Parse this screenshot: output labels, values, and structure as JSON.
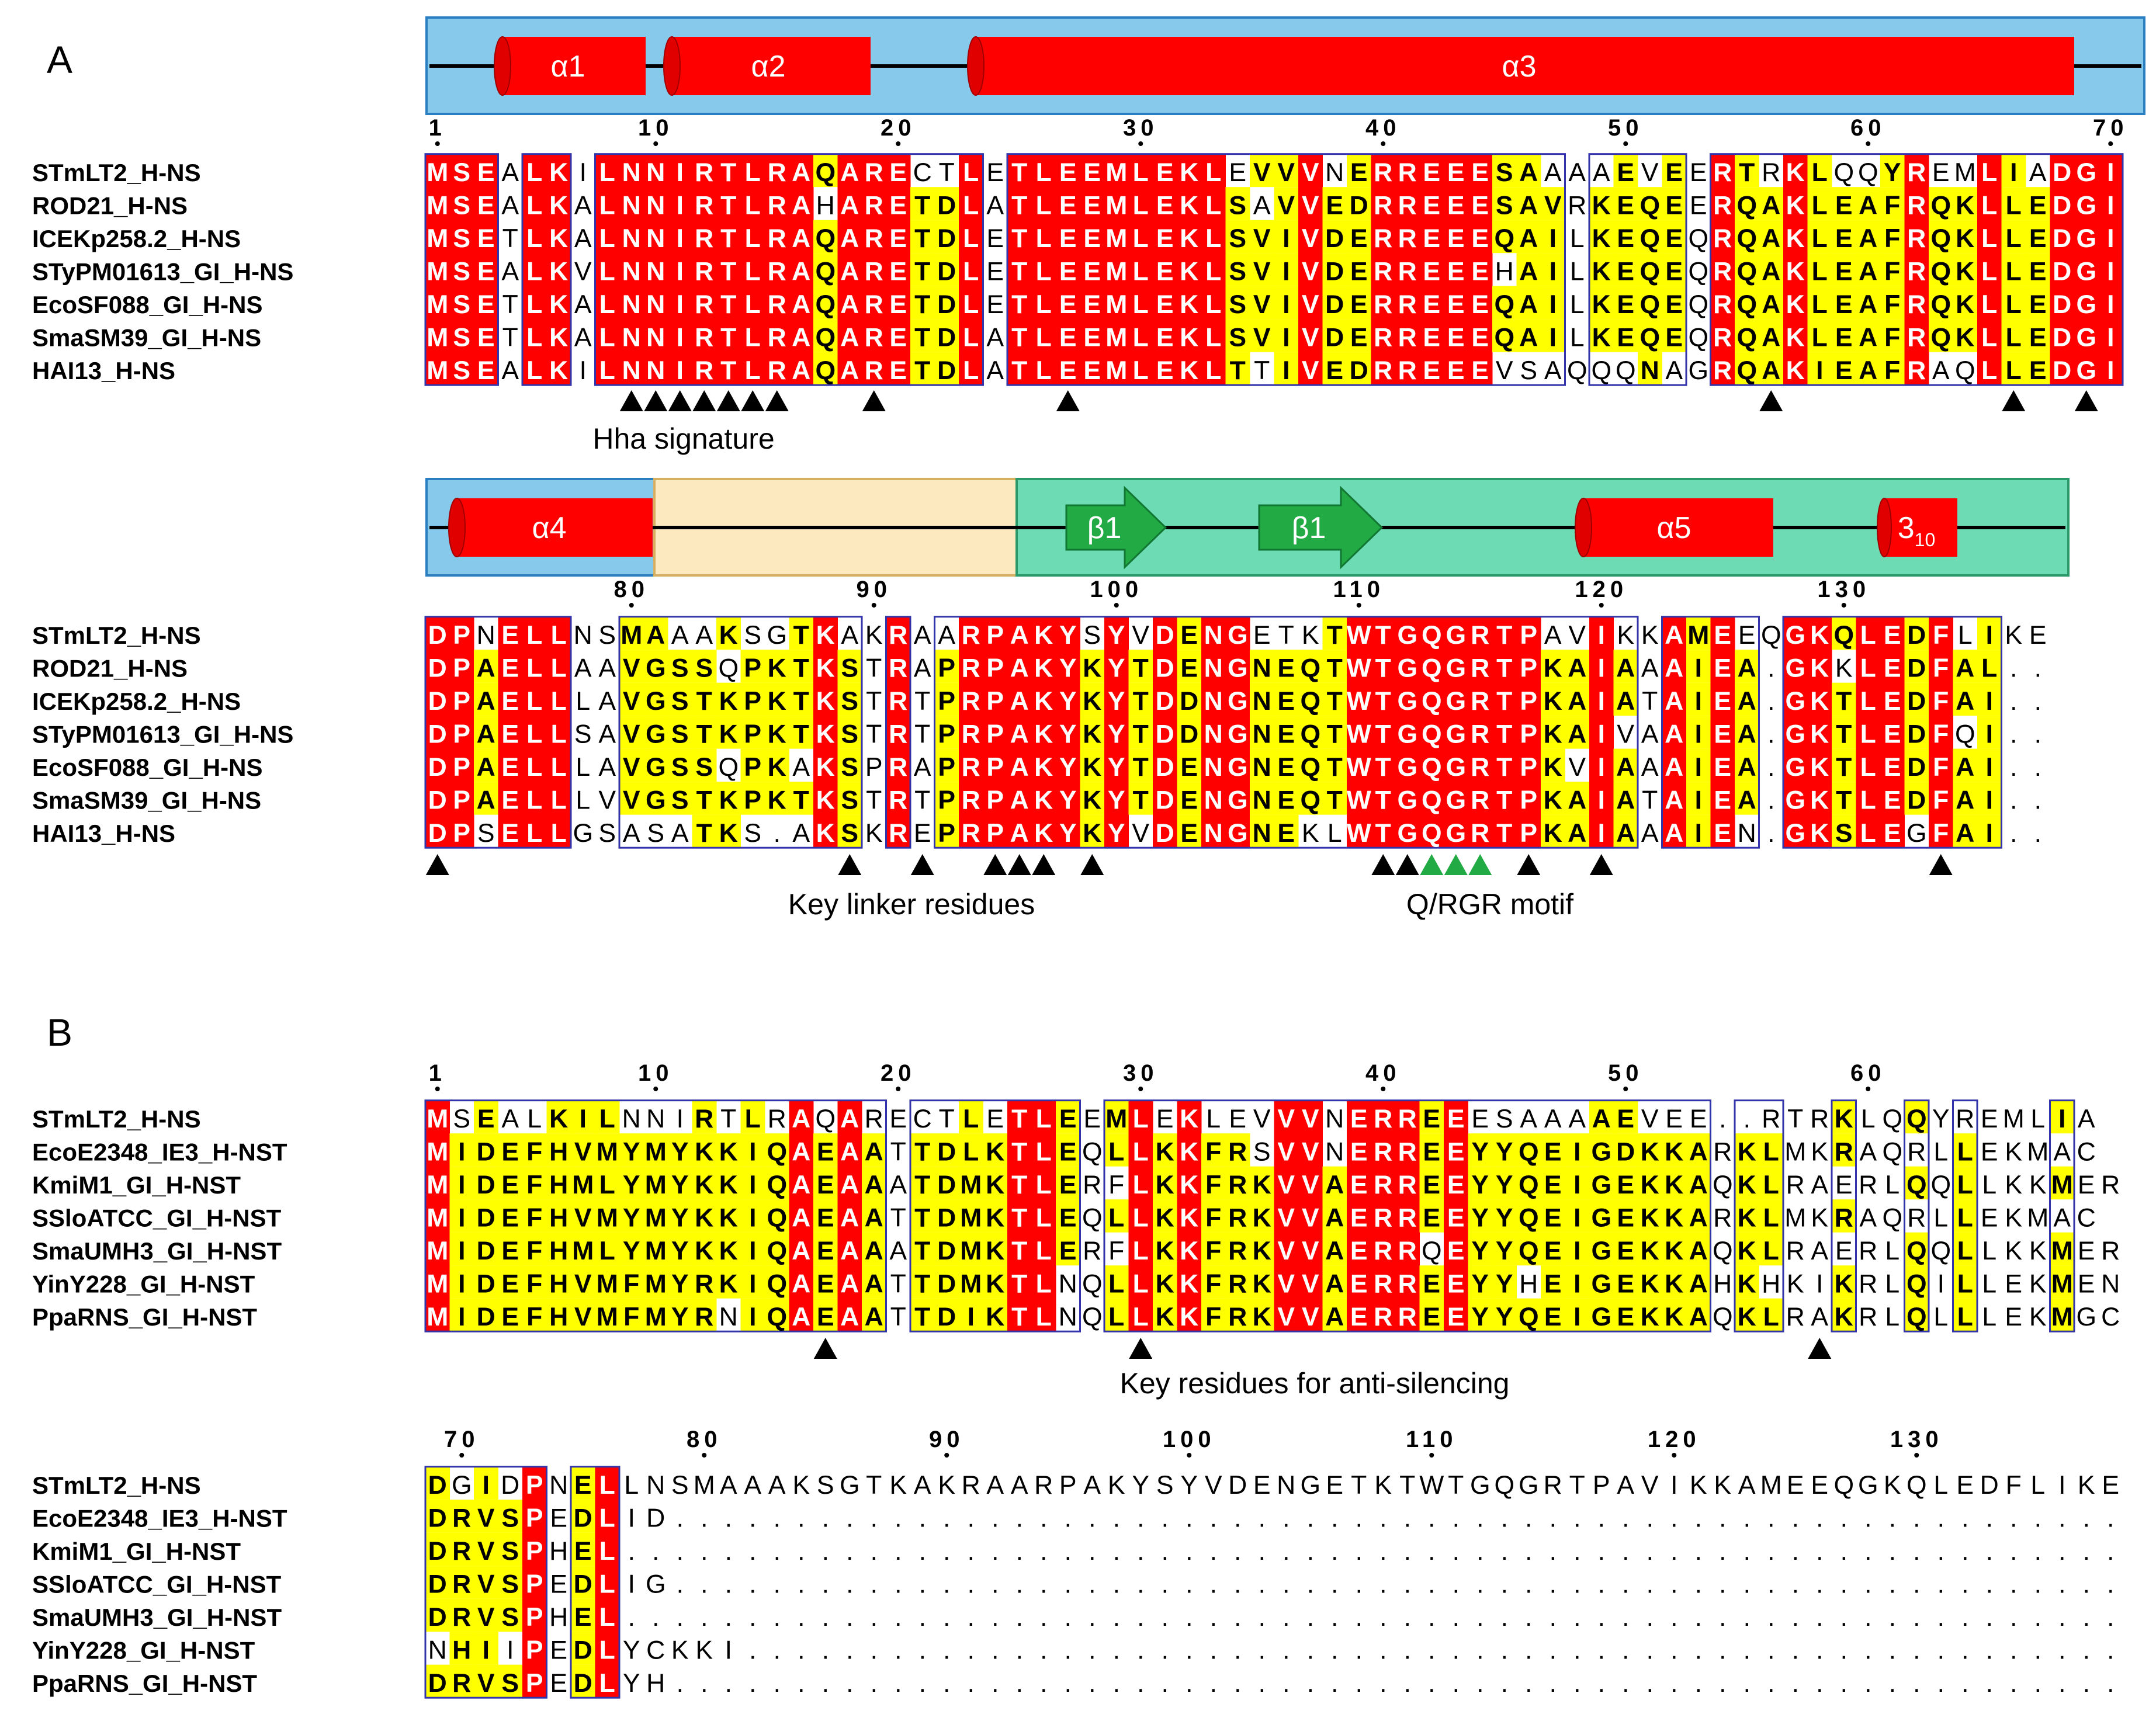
{
  "panelA": {
    "label": "A",
    "blocks": [
      {
        "start": 1,
        "tick_labels": [
          "1",
          "10",
          "20",
          "30",
          "40",
          "50",
          "60",
          "70"
        ],
        "names": [
          "STmLT2_H-NS",
          "ROD21_H-NS",
          "ICEKp258.2_H-NS",
          "STyPM01613_GI_H-NS",
          "EcoSF088_GI_H-NS",
          "SmaSM39_GI_H-NS",
          "HAI13_H-NS"
        ],
        "seqs": [
          "MSEALKILNNIRTLRAQARECTLETLEEMLEKLEVVVNERREEESAAAAEVEERTRKLQQYREMLIADGI",
          "MSEALKALNNIRTLRAHARETDLATLEEMLEKLSAVVEDRREEESAVRKEQEERQAKLEAFRQKLLEDGI",
          "MSETLKALNNIRTLRAQARETDLETLEEMLEKLSVIVDERREEEQAILKEQEQRQAKLEAFRQKLLEDGI",
          "MSEALKVLNNIRTLRAQARETDLETLEEMLEKLSVIVDERREEEHAILKEQEQRQAKLEAFRQKLLEDGI",
          "MSETLKALNNIRTLRAQARETDLETLEEMLEKLSVIVDERREEEQAILKEQEQRQAKLEAFRQKLLEDGI",
          "MSETLKALNNIRTLRAQARETDLATLEEMLEKLSVIVDERREEEQAILKEQEQRQAKLEAFRQKLLEDGI",
          "MSEALKILNNIRTLRAQARETDLATLEEMLEKLTTIVEDRREEEVSAQQQNAGRQAKIEAFRAQLLEDGI"
        ],
        "annotation_label": "Hha signature",
        "structure": [
          {
            "type": "helix",
            "label": "α1"
          },
          {
            "type": "helix",
            "label": "α2"
          },
          {
            "type": "helix",
            "label": "α3"
          }
        ],
        "marker_positions": [
          9,
          10,
          11,
          12,
          13,
          14,
          15,
          19,
          27,
          56,
          66,
          69
        ]
      },
      {
        "start": 72,
        "tick_labels": [
          "80",
          "90",
          "100",
          "110",
          "120",
          "130"
        ],
        "names": [
          "STmLT2_H-NS",
          "ROD21_H-NS",
          "ICEKp258.2_H-NS",
          "STyPM01613_GI_H-NS",
          "EcoSF088_GI_H-NS",
          "SmaSM39_GI_H-NS",
          "HAI13_H-NS"
        ],
        "seqs": [
          "DPNELLNSMAAAKSGTKAKRAARPAKYSYVDENGETKTWTGQGRTPAVIKKAMEEQGKQLEDFLIKE",
          "DPAELLAAVGSSQPKTKSTRAPRPAKYKYTDENGNEQTWTGQGRTPKAIAAAIEA.GKKLEDFAL..",
          "DPAELLLAVGSTKPKTKSTRTPRPAKYKYTDDNGNEQTWTGQGRTPKAIATAIEA.GKTLEDFAI..",
          "DPAELLSAVGSTKPKTKSTRTPRPAKYKYTDDNGNEQTWTGQGRTPKAIVAAIEA.GKTLEDFQI..",
          "DPAELLLAVGSSQPKAKSPRAPRPAKYKYTDENGNEQTWTGQGRTPKVIAAAIEA.GKTLEDFAI..",
          "DPAELLLVVGSTKPKTKSTRTPRPAKYKYTDENGNEQTWTGQGRTPKAIATAIEA.GKTLEDFAI..",
          "DPSELLGSASATKS.AKSKREPRPAKYKYVDENGNEKLWTGQGRTPKAIAAAIEN.GKSLEGFAI.."
        ],
        "annotation_labels": [
          "Key linker residues",
          "Q/RGR motif"
        ],
        "structure": [
          {
            "type": "helix",
            "label": "α4"
          },
          {
            "type": "strand",
            "label": "β1"
          },
          {
            "type": "strand",
            "label": "β1"
          },
          {
            "type": "helix",
            "label": "α5"
          },
          {
            "type": "helix310",
            "label": "3",
            "subscript": "10"
          }
        ],
        "marker_positions": [
          72,
          89,
          92,
          95,
          96,
          97,
          99,
          111,
          112,
          113,
          114,
          115,
          117,
          120,
          134
        ],
        "green_marker_positions": [
          113,
          114,
          115
        ]
      }
    ]
  },
  "panelB": {
    "label": "B",
    "blocks": [
      {
        "start": 1,
        "tick_labels": [
          "1",
          "10",
          "20",
          "30",
          "40",
          "50",
          "60"
        ],
        "names": [
          "STmLT2_H-NS",
          "EcoE2348_IE3_H-NST",
          "KmiM1_GI_H-NST",
          "SSloATCC_GI_H-NST",
          "SmaUMH3_GI_H-NST",
          "YinY228_GI_H-NST",
          "PpaRNS_GI_H-NST"
        ],
        "seqs": [
          "MSEALKILNNIRTLRAQARECTLETLEEMLEKLEVVVNERREEESAAAAEVEE..RTRKLQQYREMLIA",
          "MIDEFHVMYMYKKIQAEAATTDLKTLEQLLKKFRSVVNERREEYYQEIGDKKARKLMKRAQRLLEKMAC",
          "MIDEFHMLYMYKKIQAEAAATDMKTLERFLKKFRKVVAERREEYYQEIGEKKAQKLRAERLQQLLKKMER",
          "MIDEFHVMYMYKKIQAEAATTDMKTLEQLLKKFRKVVAERREEYYQEIGEKKARKLMKRAQRLLEKMAC",
          "MIDEFHMLYMYKKIQAEAAATDMKTLERFLKKFRKVVAERRQEYYQEIGEKKAQKLRAERLQQLLKKMER",
          "MIDEFHVMFMYRKIQAEAATTDMKTLNQLLKKFRKVVAERREEYYHEIGEKKAHKHKIKRLQILLEKMEN",
          "MIDEFHVMFMYRNIQAEAATTDIKTLNQLLKKFRKVVAERREEYYQEIGEKKAQKLRAKRLQLLLEKMGC"
        ],
        "annotation_label": "Key residues for anti-silencing",
        "marker_positions": [
          17,
          30,
          58
        ]
      },
      {
        "start": 69,
        "tick_labels": [
          "70",
          "80",
          "90",
          "100",
          "110",
          "120",
          "130"
        ],
        "names": [
          "STmLT2_H-NS",
          "EcoE2348_IE3_H-NST",
          "KmiM1_GI_H-NST",
          "SSloATCC_GI_H-NST",
          "SmaUMH3_GI_H-NST",
          "YinY228_GI_H-NST",
          "PpaRNS_GI_H-NST"
        ],
        "seqs": [
          "DGIDPNELLNSMAAAKSGTKAKRAARPAKYSYVDENGETKTWTGQGRTPAVIKKAMEEQGKQLEDFLIKE",
          "DRVSPEDLID............................................................",
          "DRVSPHEL..............................................................",
          "DRVSPEDLIG............................................................",
          "DRVSPHEL..............................................................",
          "NHIIPEDLYCKKI.........................................................",
          "DRVSPEDLYH............................................................"
        ],
        "marker_positions": []
      }
    ]
  },
  "colors": {
    "identical_bg": "#ff0000",
    "similar_bg": "#ffff00",
    "box_border": "#3333aa",
    "helix": "#ff0000",
    "strand": "#22aa44",
    "structured_bg": "#87c9ea",
    "linker_bg": "#fde9bf",
    "dna_bg": "#6ddbb3",
    "green_marker": "#22aa44"
  }
}
